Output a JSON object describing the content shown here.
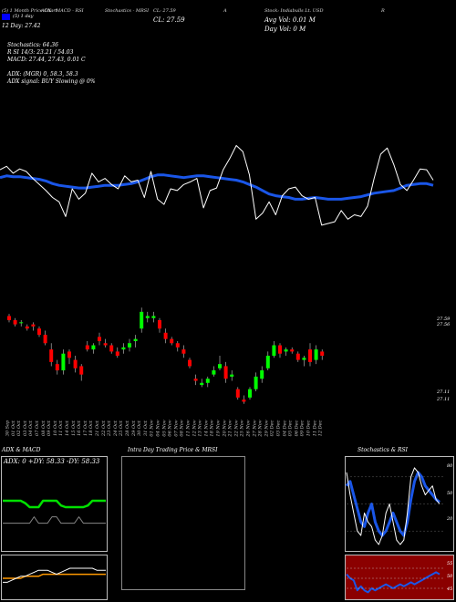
{
  "header": {
    "items": [
      "(5) 1 Month Price Chart",
      "ADX - MACD - RSI",
      "Stochastics - MRSI",
      "CL: 27.59",
      "A",
      "Stock: Indiabulls Lt. USD",
      "R"
    ],
    "legend_box_label": "(5) 1 day",
    "ema_line": "12 Day: 27.42",
    "close_value": "CL: 27.59",
    "avg_vol": "Avg Vol: 0.01 M",
    "day_vol": "Day Vol: 0 M"
  },
  "indicators": {
    "stochastics": "Stochastics: 64.36",
    "rsi": "R SI 14/3: 23.21 / 54.03",
    "macd": "MACD: 27.44, 27.43, 0.01 C",
    "adx": "ADX: (MGR) 0, 58.3, 58.3",
    "adx_signal": "ADX signal: BUY Slowing @ 0%"
  },
  "colors": {
    "background": "#000000",
    "price_line": "#ffffff",
    "ema_line": "#1a56e8",
    "candle_up": "#00ff00",
    "candle_down": "#ff0000",
    "adx_green": "#00e000",
    "macd_white": "#ffffff",
    "macd_orange": "#ff9900",
    "stoch_blue": "#1a56e8",
    "rsi_bg": "#8b0000",
    "legend_box": "#0000ff"
  },
  "chart_data": [
    {
      "type": "line",
      "name": "price-and-ema",
      "series": [
        {
          "name": "price",
          "values": [
            62,
            66,
            58,
            63,
            60,
            52,
            45,
            38,
            30,
            25,
            8,
            40,
            28,
            35,
            58,
            48,
            52,
            45,
            40,
            55,
            48,
            50,
            30,
            60,
            28,
            22,
            40,
            38,
            45,
            48,
            52,
            18,
            38,
            41,
            62,
            75,
            90,
            83,
            56,
            5,
            12,
            25,
            10,
            32,
            40,
            42,
            32,
            28,
            30,
            -2,
            0,
            2,
            15,
            5,
            10,
            8,
            20,
            52,
            80,
            87,
            68,
            45,
            38,
            50,
            63,
            62,
            50
          ]
        },
        {
          "name": "ema",
          "values": [
            53,
            55,
            54,
            54,
            53,
            52,
            51,
            49,
            46,
            44,
            43,
            42,
            41,
            41,
            42,
            43,
            44,
            44,
            44,
            45,
            46,
            48,
            51,
            54,
            56,
            56,
            55,
            54,
            53,
            54,
            55,
            55,
            54,
            53,
            52,
            51,
            50,
            48,
            45,
            42,
            38,
            34,
            32,
            31,
            30,
            28,
            28,
            29,
            30,
            29,
            28,
            28,
            28,
            29,
            30,
            31,
            33,
            35,
            36,
            37,
            38,
            41,
            44,
            45,
            46,
            46,
            44
          ]
        }
      ]
    },
    {
      "type": "candlestick",
      "name": "daily-candles",
      "x": [
        "30 Sep",
        "01 Oct",
        "02 Oct",
        "03 Oct",
        "04 Oct",
        "07 Oct",
        "08 Oct",
        "09 Oct",
        "10 Oct",
        "11 Oct",
        "14 Oct",
        "15 Oct",
        "16 Oct",
        "17 Oct",
        "18 Oct",
        "21 Oct",
        "22 Oct",
        "23 Oct",
        "24 Oct",
        "25 Oct",
        "28 Oct",
        "29 Oct",
        "30 Oct",
        "31 Oct",
        "01 Nov",
        "04 Nov",
        "05 Nov",
        "06 Nov",
        "07 Nov",
        "08 Nov",
        "11 Nov",
        "12 Nov",
        "13 Nov",
        "14 Nov",
        "18 Nov",
        "19 Nov",
        "20 Nov",
        "21 Nov",
        "22 Nov",
        "25 Nov",
        "26 Nov",
        "27 Nov",
        "28 Nov",
        "29 Nov",
        "02 Dec",
        "03 Dec",
        "04 Dec",
        "05 Dec",
        "06 Dec",
        "09 Dec",
        "10 Dec",
        "11 Dec",
        "12 Dec"
      ],
      "ohlc": [
        [
          27.54,
          27.55,
          27.51,
          27.52
        ],
        [
          27.52,
          27.53,
          27.49,
          27.5
        ],
        [
          27.51,
          27.52,
          27.49,
          27.51
        ],
        [
          27.49,
          27.5,
          27.47,
          27.48
        ],
        [
          27.5,
          27.51,
          27.47,
          27.49
        ],
        [
          27.48,
          27.49,
          27.44,
          27.45
        ],
        [
          27.45,
          27.47,
          27.4,
          27.41
        ],
        [
          27.38,
          27.41,
          27.3,
          27.32
        ],
        [
          27.31,
          27.33,
          27.26,
          27.28
        ],
        [
          27.28,
          27.38,
          27.26,
          27.36
        ],
        [
          27.37,
          27.38,
          27.31,
          27.34
        ],
        [
          27.33,
          27.35,
          27.27,
          27.29
        ],
        [
          27.3,
          27.31,
          27.23,
          27.26
        ],
        [
          27.4,
          27.42,
          27.37,
          27.38
        ],
        [
          27.38,
          27.41,
          27.36,
          27.4
        ],
        [
          27.44,
          27.46,
          27.4,
          27.42
        ],
        [
          27.41,
          27.43,
          27.39,
          27.4
        ],
        [
          27.4,
          27.41,
          27.36,
          27.37
        ],
        [
          27.37,
          27.39,
          27.34,
          27.35
        ],
        [
          27.38,
          27.41,
          27.36,
          27.39
        ],
        [
          27.39,
          27.43,
          27.37,
          27.41
        ],
        [
          27.42,
          27.45,
          27.39,
          27.43
        ],
        [
          27.48,
          27.58,
          27.46,
          27.56
        ],
        [
          27.53,
          27.56,
          27.51,
          27.54
        ],
        [
          27.53,
          27.56,
          27.51,
          27.54
        ],
        [
          27.52,
          27.53,
          27.46,
          27.48
        ],
        [
          27.46,
          27.48,
          27.41,
          27.43
        ],
        [
          27.43,
          27.44,
          27.4,
          27.41
        ],
        [
          27.41,
          27.42,
          27.37,
          27.39
        ],
        [
          27.38,
          27.4,
          27.34,
          27.36
        ],
        [
          27.33,
          27.34,
          27.29,
          27.3
        ],
        [
          27.24,
          27.26,
          27.21,
          27.23
        ],
        [
          27.21,
          27.24,
          27.2,
          27.22
        ],
        [
          27.22,
          27.25,
          27.2,
          27.24
        ],
        [
          27.26,
          27.3,
          27.25,
          27.28
        ],
        [
          27.29,
          27.35,
          27.28,
          27.31
        ],
        [
          27.3,
          27.32,
          27.22,
          27.24
        ],
        [
          27.25,
          27.28,
          27.23,
          27.26
        ],
        [
          27.19,
          27.2,
          27.14,
          27.15
        ],
        [
          27.14,
          27.16,
          27.12,
          27.13
        ],
        [
          27.15,
          27.2,
          27.14,
          27.19
        ],
        [
          27.19,
          27.27,
          27.18,
          27.25
        ],
        [
          27.24,
          27.3,
          27.22,
          27.28
        ],
        [
          27.29,
          27.37,
          27.28,
          27.35
        ],
        [
          27.35,
          27.42,
          27.34,
          27.4
        ],
        [
          27.4,
          27.41,
          27.34,
          27.36
        ],
        [
          27.37,
          27.39,
          27.35,
          27.38
        ],
        [
          27.38,
          27.39,
          27.36,
          27.37
        ],
        [
          27.36,
          27.37,
          27.32,
          27.33
        ],
        [
          27.33,
          27.35,
          27.3,
          27.34
        ],
        [
          27.38,
          27.41,
          27.3,
          27.32
        ],
        [
          27.33,
          27.4,
          27.31,
          27.38
        ],
        [
          27.37,
          27.38,
          27.33,
          27.35
        ]
      ],
      "price_labels": [
        "27.59",
        "27.56",
        "27.11",
        "27.11"
      ],
      "ylim": [
        27.11,
        27.59
      ]
    },
    {
      "type": "line",
      "name": "adx-macd",
      "title": "ADX & MACD",
      "readout": "ADX: 0  +DY: 58.33  -DY: 58.33",
      "series": [
        {
          "name": "adx",
          "values": [
            58,
            58,
            58,
            58,
            58,
            55,
            50,
            50,
            50,
            58,
            58,
            58,
            58,
            52,
            50,
            50,
            50,
            50,
            50,
            52,
            58,
            58,
            58,
            58
          ]
        },
        {
          "name": "di-gray",
          "values": [
            30,
            30,
            30,
            30,
            30,
            30,
            30,
            38,
            30,
            30,
            30,
            38,
            38,
            30,
            30,
            30,
            30,
            38,
            30,
            30,
            30,
            30,
            30,
            30
          ]
        }
      ]
    },
    {
      "type": "line",
      "name": "macd",
      "series": [
        {
          "name": "macd-white",
          "values": [
            48,
            48,
            49,
            50,
            51,
            51,
            52,
            53,
            54,
            54,
            54,
            53,
            52,
            53,
            54,
            55,
            55,
            55,
            55,
            55,
            55,
            54,
            54,
            54
          ]
        },
        {
          "name": "macd-orange",
          "values": [
            50,
            50,
            50,
            50,
            50,
            51,
            51,
            51,
            51,
            52,
            52,
            52,
            52,
            52,
            52,
            52,
            52,
            52,
            52,
            52,
            52,
            52,
            52,
            52
          ]
        }
      ]
    },
    {
      "type": "line",
      "name": "intraday",
      "title": "Intra Day Trading Price & MRSI",
      "series": []
    },
    {
      "type": "line",
      "name": "stochastics",
      "title": "Stochastics & RSI",
      "ticks": [
        "80",
        "50",
        "20"
      ],
      "series": [
        {
          "name": "k",
          "values": [
            85,
            60,
            40,
            20,
            15,
            40,
            30,
            25,
            10,
            5,
            15,
            40,
            50,
            30,
            10,
            5,
            10,
            40,
            80,
            90,
            85,
            70,
            60,
            65,
            70,
            55,
            50
          ]
        },
        {
          "name": "d",
          "values": [
            70,
            75,
            60,
            45,
            30,
            25,
            40,
            50,
            30,
            20,
            15,
            20,
            30,
            40,
            30,
            20,
            15,
            30,
            55,
            75,
            85,
            80,
            70,
            65,
            60,
            55,
            52
          ]
        }
      ]
    },
    {
      "type": "line",
      "name": "rsi",
      "ticks": [
        "55",
        "50",
        "45"
      ],
      "series": [
        {
          "name": "rsi",
          "values": [
            52,
            50,
            49,
            44,
            46,
            44,
            43,
            45,
            44,
            45,
            46,
            47,
            46,
            45,
            46,
            47,
            46,
            47,
            48,
            47,
            48,
            49,
            50,
            51,
            52,
            53,
            52
          ]
        }
      ]
    }
  ]
}
